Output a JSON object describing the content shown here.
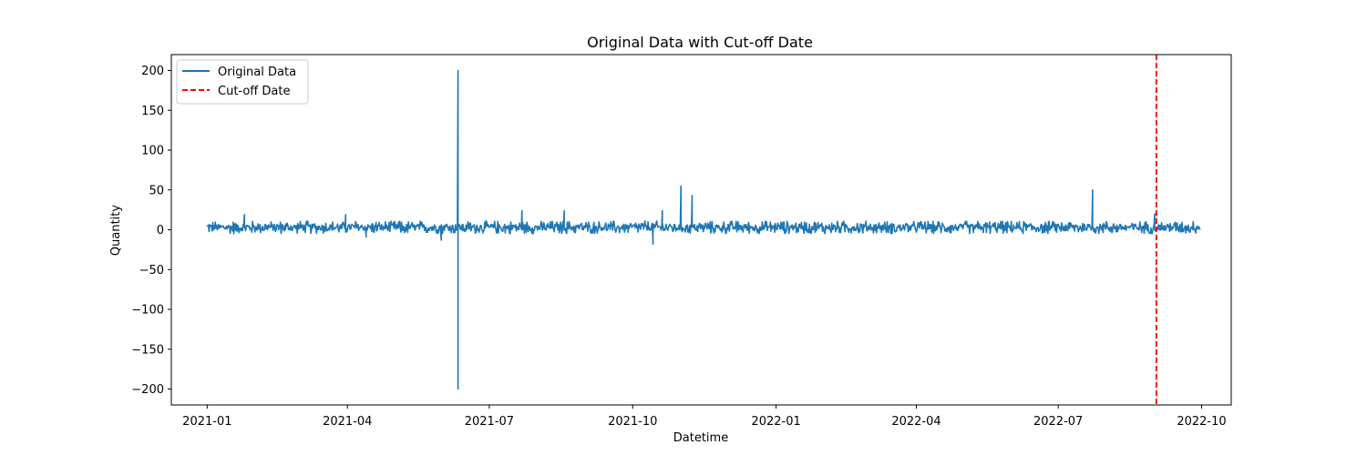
{
  "chart_data": {
    "type": "line",
    "title": "Original Data with Cut-off Date",
    "xlabel": "Datetime",
    "ylabel": "Quantity",
    "xlim": [
      "2020-12-09",
      "2022-10-20"
    ],
    "ylim": [
      -220,
      220
    ],
    "x_ticks": [
      "2021-01",
      "2021-04",
      "2021-07",
      "2021-10",
      "2022-01",
      "2022-04",
      "2022-07",
      "2022-10"
    ],
    "y_ticks": [
      -200,
      -150,
      -100,
      -50,
      0,
      50,
      100,
      150,
      200
    ],
    "grid": false,
    "legend_position": "top-left",
    "series": [
      {
        "name": "Original Data",
        "color": "#1f77b4",
        "style": "solid",
        "x_range": [
          "2021-01-01",
          "2022-09-30"
        ],
        "baseline": 3,
        "band": [
          -4,
          12
        ],
        "spikes": [
          {
            "x": "2021-01-25",
            "y": 19
          },
          {
            "x": "2021-03-31",
            "y": 19
          },
          {
            "x": "2021-04-13",
            "y": -9
          },
          {
            "x": "2021-05-31",
            "y": -13
          },
          {
            "x": "2021-06-11",
            "y": 200
          },
          {
            "x": "2021-06-11",
            "y": -200
          },
          {
            "x": "2021-07-22",
            "y": 24
          },
          {
            "x": "2021-08-18",
            "y": 24
          },
          {
            "x": "2021-10-14",
            "y": -18
          },
          {
            "x": "2021-10-20",
            "y": 24
          },
          {
            "x": "2021-11-01",
            "y": 55
          },
          {
            "x": "2021-11-08",
            "y": 43
          },
          {
            "x": "2022-07-23",
            "y": 50
          },
          {
            "x": "2022-09-01",
            "y": 20
          }
        ]
      }
    ],
    "reference_lines": [
      {
        "name": "Cut-off Date",
        "x": "2022-09-02",
        "color": "#ff0000",
        "style": "dashed"
      }
    ]
  }
}
